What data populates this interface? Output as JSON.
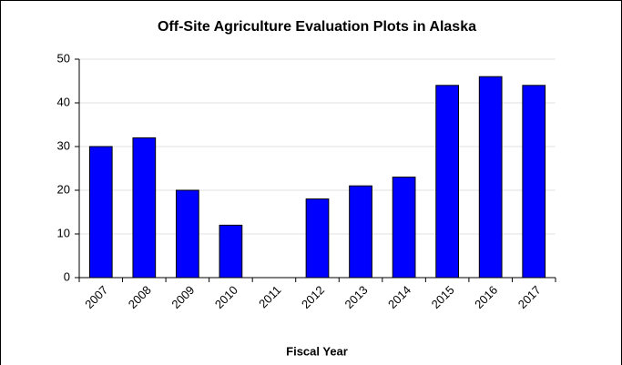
{
  "chart_data": {
    "type": "bar",
    "title": "Off-Site Agriculture Evaluation Plots in Alaska",
    "x_label": "Fiscal Year",
    "categories": [
      "2007",
      "2008",
      "2009",
      "2010",
      "2011",
      "2012",
      "2013",
      "2014",
      "2015",
      "2016",
      "2017"
    ],
    "values": [
      30,
      32,
      20,
      12,
      0,
      18,
      21,
      23,
      44,
      46,
      44
    ],
    "color": "#0000ff",
    "ylim": [
      0,
      50
    ],
    "yticks": [
      0,
      10,
      20,
      30,
      40,
      50
    ],
    "grid": true
  }
}
